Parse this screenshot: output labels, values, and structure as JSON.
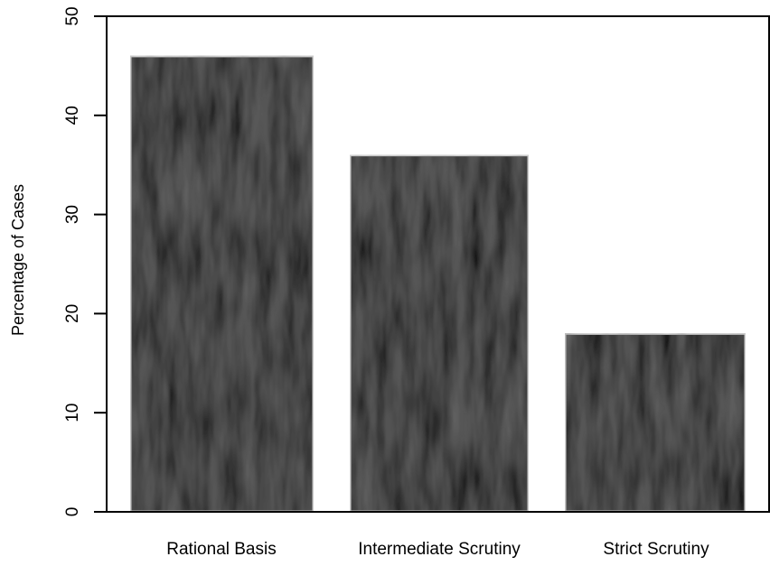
{
  "chart_data": {
    "type": "bar",
    "categories": [
      "Rational Basis",
      "Intermediate Scrutiny",
      "Strict Scrutiny"
    ],
    "values": [
      46,
      36,
      18
    ],
    "title": "",
    "xlabel": "",
    "ylabel": "Percentage of Cases",
    "ylim": [
      0,
      50
    ],
    "yticks": [
      0,
      10,
      20,
      30,
      40,
      50
    ],
    "grid": false,
    "legend": "none",
    "bar_color": "#1a1a1a",
    "bar_edge_color": "#d9d9d9"
  }
}
